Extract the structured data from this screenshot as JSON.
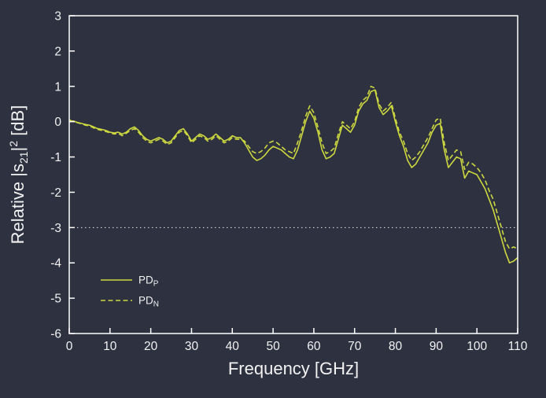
{
  "figure": {
    "background": "#2e3140",
    "frame_color": "#ffffff",
    "text_color": "#f2f2f2",
    "accent": "#cdd83f"
  },
  "chart_data": {
    "type": "line",
    "title": "",
    "xlabel": "Frequency  [GHz]",
    "ylabel": {
      "pre": "Relative |s",
      "sub": "21",
      "mid": "|",
      "sup": "2",
      "post": "  [dB]"
    },
    "xlim": [
      0,
      110
    ],
    "ylim": [
      -6,
      3
    ],
    "xticks": [
      0,
      10,
      20,
      30,
      40,
      50,
      60,
      70,
      80,
      90,
      100,
      110
    ],
    "yticks": [
      -6,
      -5,
      -4,
      -3,
      -2,
      -1,
      0,
      1,
      2,
      3
    ],
    "grid": false,
    "reference_line": {
      "y": -3,
      "style": "dotted",
      "color": "#e8e8e8"
    },
    "legend": {
      "position": "lower-left",
      "entries": [
        {
          "label": "PD",
          "sub": "P",
          "line": "solid"
        },
        {
          "label": "PD",
          "sub": "N",
          "line": "dashed"
        }
      ]
    },
    "x": [
      0,
      1,
      2,
      3,
      4,
      5,
      6,
      7,
      8,
      9,
      10,
      11,
      12,
      13,
      14,
      15,
      16,
      17,
      18,
      19,
      20,
      21,
      22,
      23,
      24,
      25,
      26,
      27,
      28,
      29,
      30,
      31,
      32,
      33,
      34,
      35,
      36,
      37,
      38,
      39,
      40,
      41,
      42,
      43,
      44,
      45,
      46,
      47,
      48,
      49,
      50,
      51,
      52,
      53,
      54,
      55,
      56,
      57,
      58,
      59,
      60,
      61,
      62,
      63,
      64,
      65,
      66,
      67,
      68,
      69,
      70,
      71,
      72,
      73,
      74,
      75,
      76,
      77,
      78,
      79,
      80,
      81,
      82,
      83,
      84,
      85,
      86,
      87,
      88,
      89,
      90,
      91,
      92,
      93,
      94,
      95,
      96,
      97,
      98,
      99,
      100,
      101,
      102,
      103,
      104,
      105,
      106,
      107,
      108,
      109,
      110
    ],
    "series": [
      {
        "name": "PD_P",
        "style": "solid",
        "color": "#cdd83f",
        "values": [
          0.0,
          0.02,
          -0.02,
          -0.05,
          -0.08,
          -0.1,
          -0.15,
          -0.2,
          -0.22,
          -0.25,
          -0.3,
          -0.32,
          -0.3,
          -0.35,
          -0.3,
          -0.2,
          -0.15,
          -0.25,
          -0.4,
          -0.5,
          -0.55,
          -0.5,
          -0.45,
          -0.5,
          -0.6,
          -0.55,
          -0.4,
          -0.25,
          -0.2,
          -0.35,
          -0.55,
          -0.45,
          -0.35,
          -0.4,
          -0.5,
          -0.45,
          -0.35,
          -0.45,
          -0.55,
          -0.5,
          -0.4,
          -0.45,
          -0.45,
          -0.6,
          -0.8,
          -1.0,
          -1.1,
          -1.05,
          -0.95,
          -0.8,
          -0.7,
          -0.75,
          -0.8,
          -0.9,
          -1.0,
          -1.05,
          -0.8,
          -0.4,
          0.0,
          0.3,
          0.1,
          -0.3,
          -0.8,
          -1.05,
          -1.0,
          -0.9,
          -0.5,
          -0.1,
          -0.2,
          -0.3,
          -0.1,
          0.3,
          0.5,
          0.6,
          0.85,
          0.9,
          0.4,
          0.2,
          0.3,
          0.45,
          0.0,
          -0.4,
          -0.7,
          -1.1,
          -1.3,
          -1.2,
          -1.0,
          -0.8,
          -0.6,
          -0.3,
          -0.1,
          -0.05,
          -0.8,
          -1.3,
          -1.15,
          -1.0,
          -1.05,
          -1.6,
          -1.4,
          -1.45,
          -1.5,
          -1.7,
          -1.9,
          -2.2,
          -2.5,
          -2.9,
          -3.3,
          -3.7,
          -4.0,
          -3.95,
          -3.85
        ]
      },
      {
        "name": "PD_N",
        "style": "dashed",
        "color": "#cdd83f",
        "values": [
          0.05,
          0.0,
          -0.03,
          -0.06,
          -0.1,
          -0.12,
          -0.18,
          -0.22,
          -0.25,
          -0.28,
          -0.32,
          -0.35,
          -0.33,
          -0.4,
          -0.33,
          -0.25,
          -0.2,
          -0.3,
          -0.45,
          -0.55,
          -0.6,
          -0.55,
          -0.5,
          -0.55,
          -0.65,
          -0.6,
          -0.45,
          -0.3,
          -0.25,
          -0.4,
          -0.6,
          -0.5,
          -0.4,
          -0.45,
          -0.55,
          -0.5,
          -0.4,
          -0.5,
          -0.6,
          -0.55,
          -0.45,
          -0.5,
          -0.5,
          -0.55,
          -0.7,
          -0.85,
          -0.9,
          -0.85,
          -0.75,
          -0.6,
          -0.55,
          -0.6,
          -0.7,
          -0.8,
          -0.85,
          -0.9,
          -0.6,
          -0.25,
          0.15,
          0.45,
          0.25,
          -0.15,
          -0.6,
          -0.9,
          -0.85,
          -0.75,
          -0.35,
          0.0,
          -0.1,
          -0.2,
          0.0,
          0.4,
          0.6,
          0.7,
          1.0,
          0.95,
          0.5,
          0.3,
          0.4,
          0.55,
          0.1,
          -0.3,
          -0.55,
          -0.9,
          -1.1,
          -1.0,
          -0.85,
          -0.65,
          -0.45,
          -0.2,
          0.05,
          0.1,
          -0.6,
          -1.1,
          -0.95,
          -0.8,
          -0.85,
          -1.35,
          -1.15,
          -1.2,
          -1.3,
          -1.45,
          -1.65,
          -1.95,
          -2.2,
          -2.6,
          -3.0,
          -3.4,
          -3.6,
          -3.55,
          -3.6
        ]
      }
    ]
  }
}
